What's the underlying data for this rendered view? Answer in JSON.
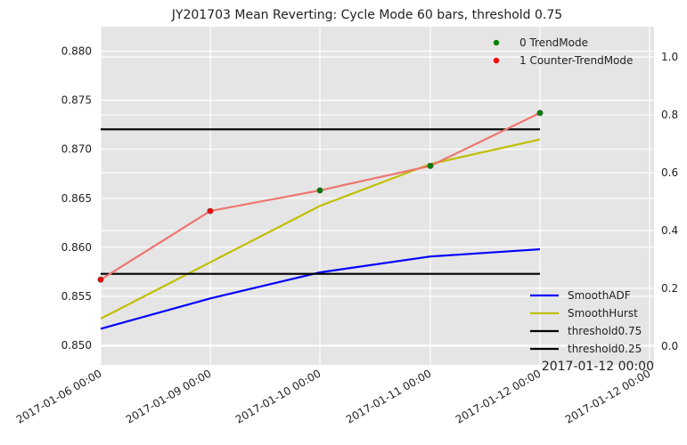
{
  "chart_data": {
    "type": "line",
    "title": "JY201703 Mean Reverting: Cycle Mode 60 bars, threshold 0.75",
    "x_tick_labels": [
      "2017-01-06 00:00",
      "2017-01-09 00:00",
      "2017-01-10 00:00",
      "2017-01-11 00:00",
      "2017-01-12 00:00",
      "2017-01-12 00:00"
    ],
    "corner_label": "2017-01-12 00:00",
    "left_axis": {
      "ylim": [
        0.848,
        0.8825
      ],
      "ticks": [
        "0.850",
        "0.855",
        "0.860",
        "0.865",
        "0.870",
        "0.875",
        "0.880"
      ],
      "tick_values": [
        0.85,
        0.855,
        0.86,
        0.865,
        0.87,
        0.875,
        0.88
      ]
    },
    "right_axis": {
      "ylim": [
        -0.065,
        1.105
      ],
      "ticks": [
        "0.0",
        "0.2",
        "0.4",
        "0.6",
        "0.8",
        "1.0"
      ],
      "tick_values": [
        0.0,
        0.2,
        0.4,
        0.6,
        0.8,
        1.0
      ]
    },
    "grid": true,
    "price_line": {
      "color": "#ee7570",
      "axis": "left",
      "values": [
        0.8567,
        0.8637,
        0.8658,
        0.8683,
        0.8737
      ]
    },
    "scatter_points": [
      {
        "mode": 1,
        "value": 0.8567
      },
      {
        "mode": 1,
        "value": 0.8637
      },
      {
        "mode": 0,
        "value": 0.8658
      },
      {
        "mode": 0,
        "value": 0.8683
      },
      {
        "mode": 0,
        "value": 0.8737
      }
    ],
    "series": [
      {
        "name": "SmoothADF",
        "color": "#0000ff",
        "axis": "right",
        "values": [
          0.06,
          0.165,
          0.255,
          0.31,
          0.335
        ]
      },
      {
        "name": "SmoothHurst",
        "color": "#bfbf00",
        "axis": "right",
        "values": [
          0.095,
          0.29,
          0.485,
          0.63,
          0.715
        ]
      },
      {
        "name": "threshold0.75",
        "color": "#000000",
        "axis": "right",
        "values": [
          0.75,
          0.75,
          0.75,
          0.75,
          0.75
        ]
      },
      {
        "name": "threshold0.25",
        "color": "#000000",
        "axis": "right",
        "values": [
          0.25,
          0.25,
          0.25,
          0.25,
          0.25
        ]
      }
    ],
    "scatter_legend": [
      {
        "label": "0 TrendMode",
        "color": "#008000"
      },
      {
        "label": "1 Counter-TrendMode",
        "color": "#ff0000"
      }
    ],
    "line_legend": [
      "SmoothADF",
      "SmoothHurst",
      "threshold0.75",
      "threshold0.25"
    ],
    "scatter_legend_position": "top-right",
    "line_legend_position": "bottom-right",
    "colors": {
      "plot_background": "#e5e5e5",
      "grid": "#ffffff"
    }
  }
}
